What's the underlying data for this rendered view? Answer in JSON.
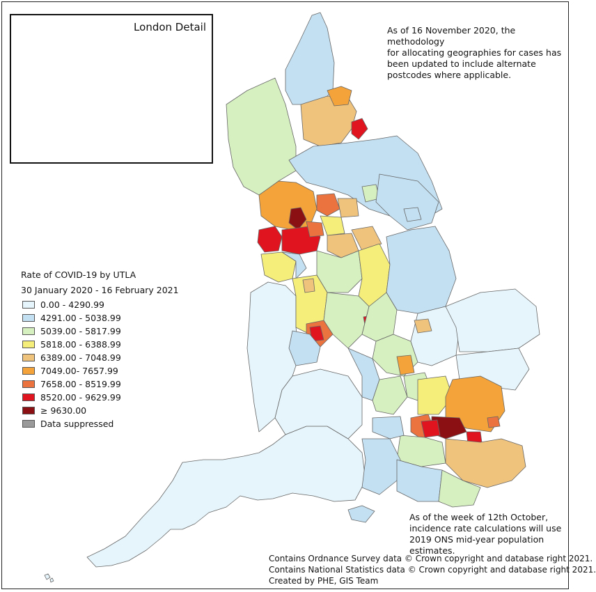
{
  "inset": {
    "title": "London Detail"
  },
  "notes": {
    "methodology": "As of 16 November 2020, the methodology\nfor allocating geographies for cases has\nbeen updated to include alternate\npostcodes where applicable.",
    "incidence": "As of the week of 12th October,\nincidence rate calculations will use\n2019 ONS mid-year population estimates."
  },
  "legend": {
    "title": "Rate of COVID-19 by UTLA",
    "subtitle": "30 January 2020 - 16 February 2021",
    "items": [
      {
        "label": "0.00 - 4290.99",
        "color": "#e6f5fb"
      },
      {
        "label": "4291.00 - 5038.99",
        "color": "#c3e0f2"
      },
      {
        "label": "5039.00 - 5817.99",
        "color": "#d6f0c0"
      },
      {
        "label": "5818.00 - 6388.99",
        "color": "#f5ee7a"
      },
      {
        "label": "6389.00 - 7048.99",
        "color": "#f0c37d"
      },
      {
        "label": "7049.00- 7657.99",
        "color": "#f3a33a"
      },
      {
        "label": "7658.00 - 8519.99",
        "color": "#ea7340"
      },
      {
        "label": "8520.00 - 9629.99",
        "color": "#e0141e"
      },
      {
        "label": "≥ 9630.00",
        "color": "#8b1014"
      },
      {
        "label": "Data suppressed",
        "color": "#9a9a9a"
      }
    ]
  },
  "credits": [
    "Contains Ordnance Survey data © Crown copyright and database right 2021.",
    "Contains National Statistics data © Crown copyright and database right 2021.",
    "Created by PHE, GIS Team"
  ]
}
